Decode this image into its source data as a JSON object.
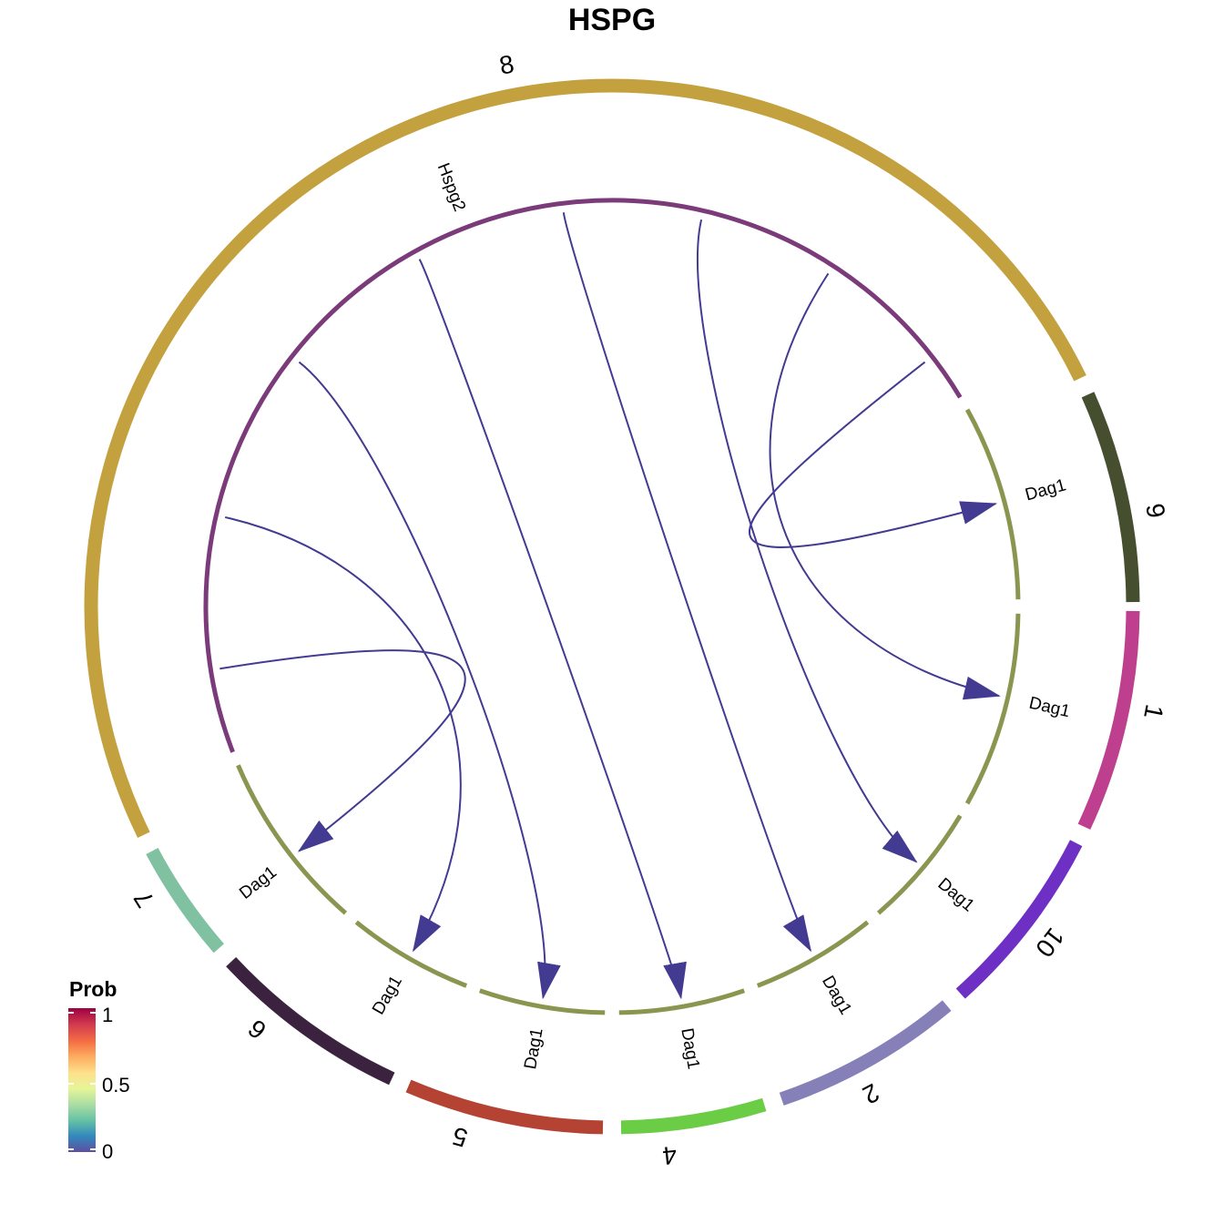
{
  "title": "HSPG",
  "colors": {
    "link": "#433b91",
    "inner_source": "#7b3b7a",
    "inner_target": "#8a9650"
  },
  "clusters": [
    {
      "name": "8",
      "color": "#c4a13f"
    },
    {
      "name": "9",
      "color": "#454f2f"
    },
    {
      "name": "1",
      "color": "#bd3f8e"
    },
    {
      "name": "10",
      "color": "#6e2fc4"
    },
    {
      "name": "2",
      "color": "#8580b8"
    },
    {
      "name": "4",
      "color": "#6bcc46"
    },
    {
      "name": "5",
      "color": "#b54334"
    },
    {
      "name": "6",
      "color": "#3b2340"
    },
    {
      "name": "7",
      "color": "#80c1a2"
    }
  ],
  "genes": {
    "source": "Hspg2",
    "targets": [
      "Dag1",
      "Dag1",
      "Dag1",
      "Dag1",
      "Dag1",
      "Dag1",
      "Dag1",
      "Dag1"
    ]
  },
  "links": [
    {
      "from": "8",
      "to": "9",
      "prob": 0.02
    },
    {
      "from": "8",
      "to": "1",
      "prob": 0.02
    },
    {
      "from": "8",
      "to": "10",
      "prob": 0.02
    },
    {
      "from": "8",
      "to": "2",
      "prob": 0.02
    },
    {
      "from": "8",
      "to": "4",
      "prob": 0.02
    },
    {
      "from": "8",
      "to": "5",
      "prob": 0.02
    },
    {
      "from": "8",
      "to": "6",
      "prob": 0.02
    },
    {
      "from": "8",
      "to": "7",
      "prob": 0.02
    }
  ],
  "legend": {
    "title": "Prob",
    "ticks": [
      "1",
      "0.5",
      "0"
    ],
    "gradient": [
      "#5e4fa2",
      "#3288bd",
      "#66c2a5",
      "#abdda4",
      "#e6f598",
      "#fee08b",
      "#fdae61",
      "#f46d43",
      "#d53e4f",
      "#9e0142"
    ]
  }
}
